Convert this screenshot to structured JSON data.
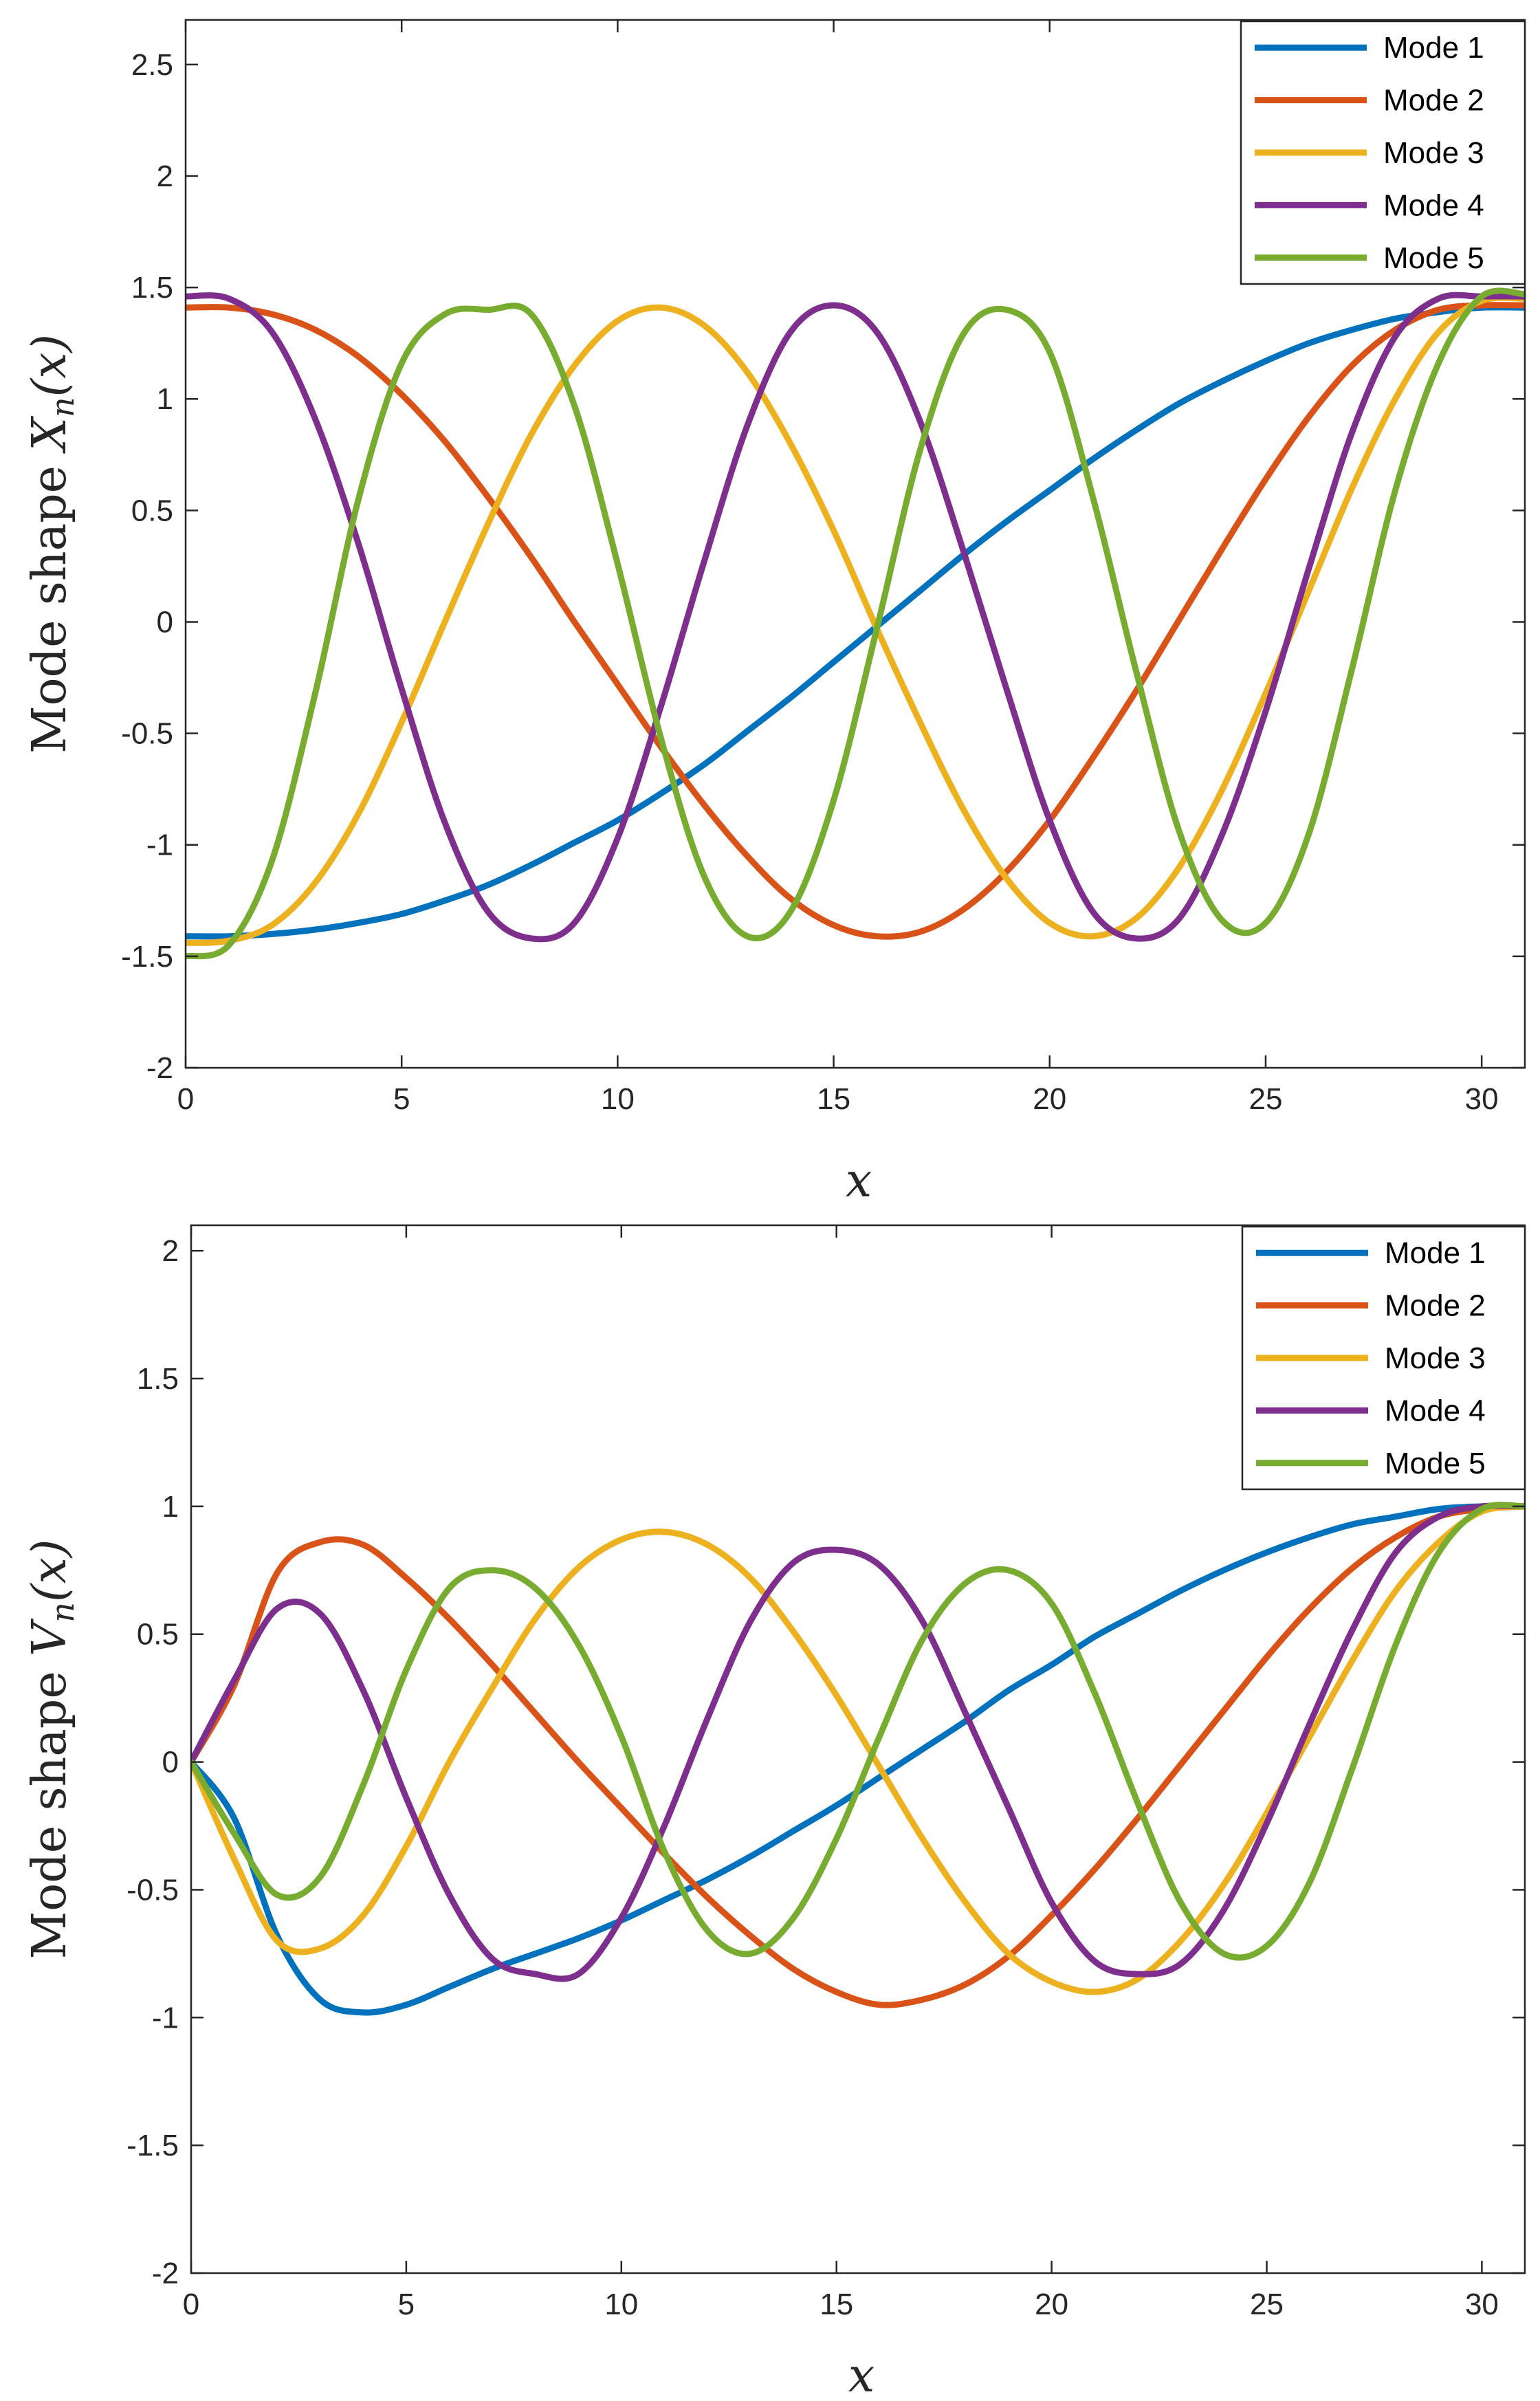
{
  "chart_data": [
    {
      "type": "line",
      "title": "",
      "xlabel": "x",
      "ylabel": "Mode shape X_n(x)",
      "ylabel_parts": {
        "prefix": "Mode shape ",
        "symbol": "X",
        "subscript": "n",
        "arg": "(x)"
      },
      "xlim": [
        0,
        31
      ],
      "ylim": [
        -2,
        2.7
      ],
      "x_ticks": [
        "0",
        "5",
        "10",
        "15",
        "20",
        "25",
        "30"
      ],
      "y_ticks": [
        "-2",
        "-1.5",
        "-1",
        "-0.5",
        "0",
        "0.5",
        "1",
        "1.5",
        "2",
        "2.5"
      ],
      "x_tick_values": [
        0,
        5,
        10,
        15,
        20,
        25,
        30
      ],
      "y_tick_values": [
        -2,
        -1.5,
        -1,
        -0.5,
        0,
        0.5,
        1,
        1.5,
        2,
        2.5
      ],
      "grid": false,
      "legend_position": "top-right",
      "series": [
        {
          "name": "Mode 1",
          "color": "#0072BD",
          "x": [
            0,
            1,
            2,
            3,
            4,
            5,
            6,
            7,
            8,
            9,
            10,
            11,
            12,
            13,
            14,
            15,
            16,
            17,
            18,
            19,
            20,
            21,
            22,
            23,
            24,
            25,
            26,
            27,
            28,
            29,
            30,
            31
          ],
          "y": [
            -1.41,
            -1.41,
            -1.4,
            -1.38,
            -1.35,
            -1.31,
            -1.25,
            -1.18,
            -1.09,
            -0.99,
            -0.89,
            -0.77,
            -0.64,
            -0.49,
            -0.34,
            -0.18,
            -0.02,
            0.14,
            0.3,
            0.45,
            0.59,
            0.73,
            0.86,
            0.98,
            1.08,
            1.17,
            1.25,
            1.31,
            1.36,
            1.39,
            1.41,
            1.41
          ]
        },
        {
          "name": "Mode 2",
          "color": "#D95319",
          "x": [
            0,
            1,
            2,
            3,
            4,
            5,
            6,
            7,
            8,
            9,
            10,
            11,
            12,
            13,
            14,
            15,
            16,
            17,
            18,
            19,
            20,
            21,
            22,
            23,
            24,
            25,
            26,
            27,
            28,
            29,
            30,
            31
          ],
          "y": [
            1.41,
            1.41,
            1.38,
            1.31,
            1.19,
            1.02,
            0.81,
            0.56,
            0.29,
            0.0,
            -0.28,
            -0.56,
            -0.82,
            -1.05,
            -1.24,
            -1.36,
            -1.41,
            -1.39,
            -1.29,
            -1.12,
            -0.89,
            -0.61,
            -0.31,
            0.01,
            0.33,
            0.64,
            0.92,
            1.15,
            1.31,
            1.4,
            1.42,
            1.42
          ]
        },
        {
          "name": "Mode 3",
          "color": "#EDB120",
          "x": [
            0,
            1,
            2,
            3,
            4,
            5,
            6,
            7,
            8,
            9,
            10,
            11,
            12,
            13,
            14,
            15,
            16,
            17,
            18,
            19,
            20,
            21,
            22,
            23,
            24,
            25,
            26,
            27,
            28,
            29,
            30,
            31
          ],
          "y": [
            -1.44,
            -1.43,
            -1.36,
            -1.17,
            -0.86,
            -0.45,
            0.0,
            0.44,
            0.84,
            1.15,
            1.35,
            1.41,
            1.33,
            1.12,
            0.8,
            0.41,
            -0.03,
            -0.45,
            -0.84,
            -1.15,
            -1.35,
            -1.41,
            -1.33,
            -1.1,
            -0.75,
            -0.32,
            0.14,
            0.6,
            1.0,
            1.3,
            1.44,
            1.45
          ]
        },
        {
          "name": "Mode 4",
          "color": "#7E2F8E",
          "x": [
            0,
            1,
            2,
            3,
            4,
            5,
            6,
            7,
            8,
            9,
            10,
            11,
            12,
            13,
            14,
            15,
            16,
            17,
            18,
            19,
            20,
            21,
            22,
            23,
            24,
            25,
            26,
            27,
            28,
            29,
            30,
            31
          ],
          "y": [
            1.46,
            1.45,
            1.3,
            0.91,
            0.35,
            -0.3,
            -0.9,
            -1.3,
            -1.42,
            -1.35,
            -0.97,
            -0.38,
            0.27,
            0.88,
            1.3,
            1.42,
            1.3,
            0.9,
            0.32,
            -0.3,
            -0.89,
            -1.3,
            -1.42,
            -1.33,
            -0.95,
            -0.4,
            0.24,
            0.85,
            1.28,
            1.45,
            1.46,
            1.46
          ]
        },
        {
          "name": "Mode 5",
          "color": "#77AC30",
          "x": [
            0,
            1,
            2,
            3,
            4,
            5,
            6,
            7,
            8,
            9,
            10,
            11,
            12,
            13,
            14,
            15,
            16,
            17,
            18,
            19,
            20,
            21,
            22,
            23,
            24,
            25,
            26,
            27,
            28,
            29,
            30,
            31
          ],
          "y": [
            -1.5,
            -1.45,
            -1.07,
            -0.32,
            0.55,
            1.16,
            1.38,
            1.4,
            1.38,
            0.97,
            0.26,
            -0.52,
            -1.14,
            -1.41,
            -1.3,
            -0.8,
            -0.03,
            0.77,
            1.29,
            1.4,
            1.21,
            0.56,
            -0.22,
            -0.94,
            -1.34,
            -1.35,
            -0.95,
            -0.21,
            0.59,
            1.16,
            1.46,
            1.47
          ]
        }
      ]
    },
    {
      "type": "line",
      "title": "",
      "xlabel": "x",
      "ylabel": "Mode shape V_n(x)",
      "ylabel_parts": {
        "prefix": "Mode shape ",
        "symbol": "V",
        "subscript": "n",
        "arg": "(x)"
      },
      "xlim": [
        0,
        31
      ],
      "ylim": [
        -2,
        2.1
      ],
      "x_ticks": [
        "0",
        "5",
        "10",
        "15",
        "20",
        "25",
        "30"
      ],
      "y_ticks": [
        "-2",
        "-1.5",
        "-1",
        "-0.5",
        "0",
        "0.5",
        "1",
        "1.5",
        "2"
      ],
      "x_tick_values": [
        0,
        5,
        10,
        15,
        20,
        25,
        30
      ],
      "y_tick_values": [
        -2,
        -1.5,
        -1,
        -0.5,
        0,
        0.5,
        1,
        1.5,
        2
      ],
      "grid": false,
      "legend_position": "top-right",
      "series": [
        {
          "name": "Mode 1",
          "color": "#0072BD",
          "x": [
            0,
            1,
            2,
            3,
            4,
            5,
            6,
            7,
            8,
            9,
            10,
            11,
            12,
            13,
            14,
            15,
            16,
            17,
            18,
            19,
            20,
            21,
            22,
            23,
            24,
            25,
            26,
            27,
            28,
            29,
            30,
            31
          ],
          "y": [
            0.0,
            -0.22,
            -0.68,
            -0.93,
            -0.98,
            -0.95,
            -0.88,
            -0.81,
            -0.75,
            -0.69,
            -0.62,
            -0.54,
            -0.46,
            -0.37,
            -0.27,
            -0.17,
            -0.06,
            0.05,
            0.16,
            0.28,
            0.38,
            0.49,
            0.58,
            0.67,
            0.75,
            0.82,
            0.88,
            0.93,
            0.96,
            0.99,
            1.0,
            1.0
          ]
        },
        {
          "name": "Mode 2",
          "color": "#D95319",
          "x": [
            0,
            1,
            2,
            3,
            4,
            5,
            6,
            7,
            8,
            9,
            10,
            11,
            12,
            13,
            14,
            15,
            16,
            17,
            18,
            19,
            20,
            21,
            22,
            23,
            24,
            25,
            26,
            27,
            28,
            29,
            30,
            31
          ],
          "y": [
            0.0,
            0.3,
            0.74,
            0.86,
            0.85,
            0.72,
            0.56,
            0.38,
            0.19,
            0.0,
            -0.18,
            -0.36,
            -0.53,
            -0.68,
            -0.81,
            -0.9,
            -0.95,
            -0.93,
            -0.87,
            -0.76,
            -0.6,
            -0.42,
            -0.22,
            -0.01,
            0.2,
            0.41,
            0.6,
            0.76,
            0.88,
            0.96,
            0.99,
            1.0
          ]
        },
        {
          "name": "Mode 3",
          "color": "#EDB120",
          "x": [
            0,
            1,
            2,
            3,
            4,
            5,
            6,
            7,
            8,
            9,
            10,
            11,
            12,
            13,
            14,
            15,
            16,
            17,
            18,
            19,
            20,
            21,
            22,
            23,
            24,
            25,
            26,
            27,
            28,
            29,
            30,
            31
          ],
          "y": [
            0.0,
            -0.38,
            -0.7,
            -0.73,
            -0.6,
            -0.33,
            0.0,
            0.29,
            0.56,
            0.76,
            0.87,
            0.9,
            0.85,
            0.72,
            0.51,
            0.26,
            -0.02,
            -0.3,
            -0.55,
            -0.75,
            -0.86,
            -0.9,
            -0.85,
            -0.7,
            -0.48,
            -0.2,
            0.1,
            0.4,
            0.67,
            0.86,
            0.98,
            1.0
          ]
        },
        {
          "name": "Mode 4",
          "color": "#7E2F8E",
          "x": [
            0,
            1,
            2,
            3,
            4,
            5,
            6,
            7,
            8,
            9,
            10,
            11,
            12,
            13,
            14,
            15,
            16,
            17,
            18,
            19,
            20,
            21,
            22,
            23,
            24,
            25,
            26,
            27,
            28,
            29,
            30,
            31
          ],
          "y": [
            0.0,
            0.32,
            0.6,
            0.58,
            0.28,
            -0.14,
            -0.52,
            -0.77,
            -0.83,
            -0.83,
            -0.61,
            -0.25,
            0.17,
            0.55,
            0.78,
            0.83,
            0.77,
            0.55,
            0.19,
            -0.18,
            -0.55,
            -0.78,
            -0.83,
            -0.79,
            -0.58,
            -0.24,
            0.15,
            0.52,
            0.82,
            0.96,
            1.0,
            1.0
          ]
        },
        {
          "name": "Mode 5",
          "color": "#77AC30",
          "x": [
            0,
            1,
            2,
            3,
            4,
            5,
            6,
            7,
            8,
            9,
            10,
            11,
            12,
            13,
            14,
            15,
            16,
            17,
            18,
            19,
            20,
            21,
            22,
            23,
            24,
            25,
            26,
            27,
            28,
            29,
            30,
            31
          ],
          "y": [
            0.0,
            -0.28,
            -0.52,
            -0.45,
            -0.09,
            0.36,
            0.68,
            0.75,
            0.68,
            0.46,
            0.1,
            -0.35,
            -0.66,
            -0.75,
            -0.61,
            -0.3,
            0.1,
            0.48,
            0.7,
            0.75,
            0.62,
            0.27,
            -0.16,
            -0.55,
            -0.75,
            -0.72,
            -0.47,
            -0.02,
            0.46,
            0.82,
            0.99,
            1.0
          ]
        }
      ]
    }
  ]
}
